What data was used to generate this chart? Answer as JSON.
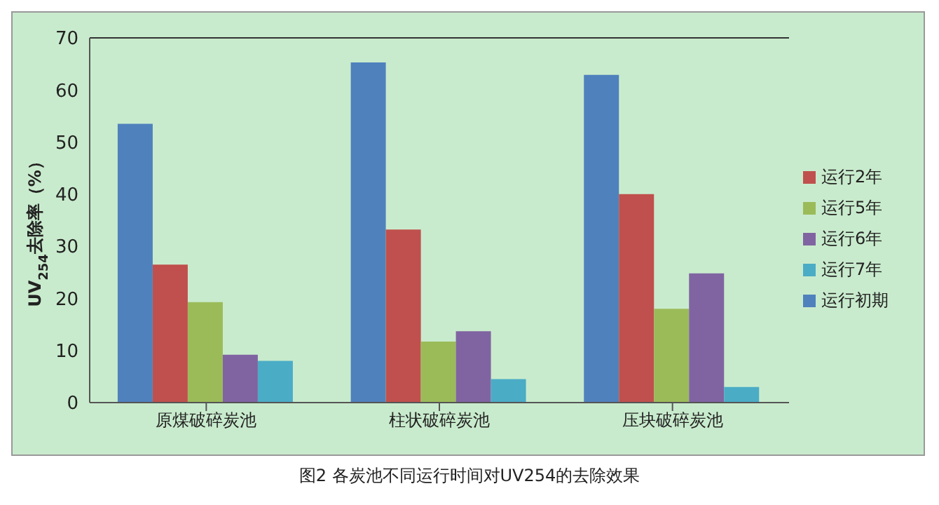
{
  "chart_data": {
    "type": "bar",
    "title": "图2 各炭池不同运行时间对UV254的去除效果",
    "ylabel": "UV$_{254}$去除率（%）",
    "categories": [
      "原煤破碎炭池",
      "柱状破碎炭池",
      "压块破碎炭池"
    ],
    "series": [
      {
        "name": "运行初期",
        "color": "#4f81bd",
        "values": [
          53.5,
          65.3,
          62.9
        ]
      },
      {
        "name": "运行2年",
        "color": "#c0504d",
        "values": [
          26.5,
          33.2,
          40.0
        ]
      },
      {
        "name": "运行5年",
        "color": "#9bbb59",
        "values": [
          19.3,
          11.7,
          18.0
        ]
      },
      {
        "name": "运行6年",
        "color": "#8064a2",
        "values": [
          9.2,
          13.7,
          24.8
        ]
      },
      {
        "name": "运行7年",
        "color": "#4bacc6",
        "values": [
          8.0,
          4.5,
          3.0
        ]
      }
    ],
    "ylim": [
      0,
      70
    ],
    "yticks": [
      0,
      10,
      20,
      30,
      40,
      50,
      60,
      70
    ],
    "grid": false,
    "legend": "right"
  }
}
